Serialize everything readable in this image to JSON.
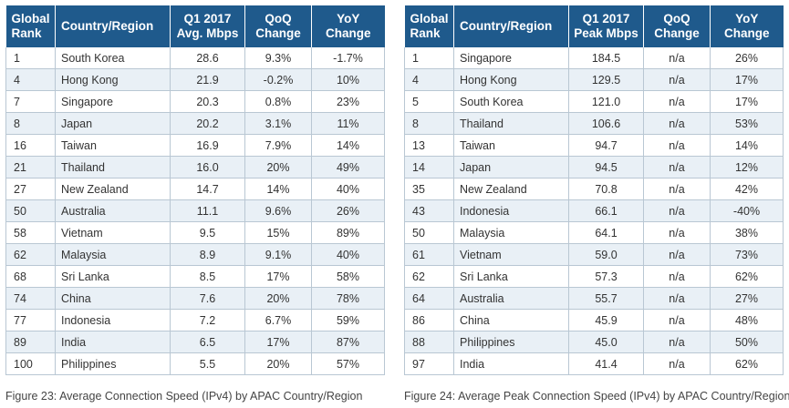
{
  "left_table": {
    "headers": {
      "rank": [
        "Global",
        "Rank"
      ],
      "country": [
        "Country/Region"
      ],
      "metric": [
        "Q1 2017",
        "Avg. Mbps"
      ],
      "qoq": [
        "QoQ",
        "Change"
      ],
      "yoy": [
        "YoY",
        "Change"
      ]
    },
    "rows": [
      [
        "1",
        "South Korea",
        "28.6",
        "9.3%",
        "-1.7%"
      ],
      [
        "4",
        "Hong Kong",
        "21.9",
        "-0.2%",
        "10%"
      ],
      [
        "7",
        "Singapore",
        "20.3",
        "0.8%",
        "23%"
      ],
      [
        "8",
        "Japan",
        "20.2",
        "3.1%",
        "11%"
      ],
      [
        "16",
        "Taiwan",
        "16.9",
        "7.9%",
        "14%"
      ],
      [
        "21",
        "Thailand",
        "16.0",
        "20%",
        "49%"
      ],
      [
        "27",
        "New Zealand",
        "14.7",
        "14%",
        "40%"
      ],
      [
        "50",
        "Australia",
        "11.1",
        "9.6%",
        "26%"
      ],
      [
        "58",
        "Vietnam",
        "9.5",
        "15%",
        "89%"
      ],
      [
        "62",
        "Malaysia",
        "8.9",
        "9.1%",
        "40%"
      ],
      [
        "68",
        "Sri Lanka",
        "8.5",
        "17%",
        "58%"
      ],
      [
        "74",
        "China",
        "7.6",
        "20%",
        "78%"
      ],
      [
        "77",
        "Indonesia",
        "7.2",
        "6.7%",
        "59%"
      ],
      [
        "89",
        "India",
        "6.5",
        "17%",
        "87%"
      ],
      [
        "100",
        "Philippines",
        "5.5",
        "20%",
        "57%"
      ]
    ],
    "caption": "Figure 23: Average Connection Speed (IPv4) by APAC Country/Region"
  },
  "right_table": {
    "headers": {
      "rank": [
        "Global",
        "Rank"
      ],
      "country": [
        "Country/Region"
      ],
      "metric": [
        "Q1 2017",
        "Peak Mbps"
      ],
      "qoq": [
        "QoQ",
        "Change"
      ],
      "yoy": [
        "YoY",
        "Change"
      ]
    },
    "rows": [
      [
        "1",
        "Singapore",
        "184.5",
        "n/a",
        "26%"
      ],
      [
        "4",
        "Hong Kong",
        "129.5",
        "n/a",
        "17%"
      ],
      [
        "5",
        "South Korea",
        "121.0",
        "n/a",
        "17%"
      ],
      [
        "8",
        "Thailand",
        "106.6",
        "n/a",
        "53%"
      ],
      [
        "13",
        "Taiwan",
        "94.7",
        "n/a",
        "14%"
      ],
      [
        "14",
        "Japan",
        "94.5",
        "n/a",
        "12%"
      ],
      [
        "35",
        "New Zealand",
        "70.8",
        "n/a",
        "42%"
      ],
      [
        "43",
        "Indonesia",
        "66.1",
        "n/a",
        "-40%"
      ],
      [
        "50",
        "Malaysia",
        "64.1",
        "n/a",
        "38%"
      ],
      [
        "61",
        "Vietnam",
        "59.0",
        "n/a",
        "73%"
      ],
      [
        "62",
        "Sri Lanka",
        "57.3",
        "n/a",
        "62%"
      ],
      [
        "64",
        "Australia",
        "55.7",
        "n/a",
        "27%"
      ],
      [
        "86",
        "China",
        "45.9",
        "n/a",
        "48%"
      ],
      [
        "88",
        "Philippines",
        "45.0",
        "n/a",
        "50%"
      ],
      [
        "97",
        "India",
        "41.4",
        "n/a",
        "62%"
      ]
    ],
    "caption": "Figure 24: Average Peak Connection Speed (IPv4) by APAC Country/Region"
  },
  "colors": {
    "header_bg": "#1f5a8c",
    "header_text": "#ffffff",
    "stripe": "#e9f0f6",
    "border": "#b9c7d3"
  }
}
